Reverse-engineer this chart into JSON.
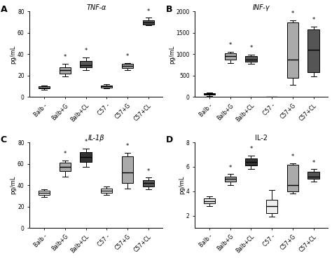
{
  "panels": [
    {
      "label": "A",
      "title": "TNF-α",
      "ylabel": "pg/mL",
      "ylim": [
        0,
        80
      ],
      "yticks": [
        0,
        20,
        40,
        60,
        80
      ],
      "groups": [
        "Balb -",
        "Balb+G",
        "Balb+CL",
        "C57 -",
        "C57+G",
        "C57+CL"
      ],
      "boxes": [
        {
          "med": 9,
          "q1": 8,
          "q3": 10,
          "whislo": 7,
          "whishi": 11,
          "color": "#cccccc",
          "star": false
        },
        {
          "med": 25,
          "q1": 22,
          "q3": 28,
          "whislo": 19,
          "whishi": 31,
          "color": "#aaaaaa",
          "star": true
        },
        {
          "med": 30,
          "q1": 28,
          "q3": 34,
          "whislo": 25,
          "whishi": 37,
          "color": "#555555",
          "star": true
        },
        {
          "med": 10,
          "q1": 9,
          "q3": 11,
          "whislo": 8,
          "whishi": 12,
          "color": "#cccccc",
          "star": false
        },
        {
          "med": 29,
          "q1": 27,
          "q3": 31,
          "whislo": 25,
          "whishi": 32,
          "color": "#aaaaaa",
          "star": true
        },
        {
          "med": 70,
          "q1": 68,
          "q3": 72,
          "whislo": 67,
          "whishi": 74,
          "color": "#555555",
          "star": true
        }
      ]
    },
    {
      "label": "B",
      "title": "INF-γ",
      "ylabel": "pg/mL",
      "ylim": [
        0,
        2000
      ],
      "yticks": [
        0,
        500,
        1000,
        1500,
        2000
      ],
      "groups": [
        "Balb -",
        "Balb+G",
        "Balb+CL",
        "C57 -",
        "C57+G",
        "C57+CL"
      ],
      "boxes": [
        {
          "med": 70,
          "q1": 50,
          "q3": 90,
          "whislo": 30,
          "whishi": 100,
          "color": "#cccccc",
          "star": false
        },
        {
          "med": 950,
          "q1": 870,
          "q3": 1020,
          "whislo": 790,
          "whishi": 1060,
          "color": "#aaaaaa",
          "star": true
        },
        {
          "med": 880,
          "q1": 830,
          "q3": 960,
          "whislo": 780,
          "whishi": 990,
          "color": "#555555",
          "star": true
        },
        {
          "med": 5,
          "q1": 3,
          "q3": 8,
          "whislo": 1,
          "whishi": 10,
          "color": "#cccccc",
          "star": false
        },
        {
          "med": 880,
          "q1": 450,
          "q3": 1750,
          "whislo": 280,
          "whishi": 1800,
          "color": "#aaaaaa",
          "star": true
        },
        {
          "med": 1100,
          "q1": 580,
          "q3": 1580,
          "whislo": 480,
          "whishi": 1640,
          "color": "#555555",
          "star": true
        }
      ]
    },
    {
      "label": "C",
      "title": "IL-1β",
      "ylabel": "pg/mL",
      "ylim": [
        0,
        80
      ],
      "yticks": [
        0,
        20,
        40,
        60,
        80
      ],
      "groups": [
        "Balb -",
        "Balb+G",
        "Balb+CL",
        "C57 -",
        "C57+G",
        "C57+CL"
      ],
      "boxes": [
        {
          "med": 33,
          "q1": 31,
          "q3": 35,
          "whislo": 29,
          "whishi": 36,
          "color": "#eeeeee",
          "star": false
        },
        {
          "med": 57,
          "q1": 53,
          "q3": 61,
          "whislo": 48,
          "whishi": 63,
          "color": "#aaaaaa",
          "star": true
        },
        {
          "med": 66,
          "q1": 62,
          "q3": 71,
          "whislo": 57,
          "whishi": 74,
          "color": "#333333",
          "star": true
        },
        {
          "med": 35,
          "q1": 33,
          "q3": 37,
          "whislo": 31,
          "whishi": 39,
          "color": "#eeeeee",
          "star": false
        },
        {
          "med": 52,
          "q1": 42,
          "q3": 67,
          "whislo": 37,
          "whishi": 70,
          "color": "#aaaaaa",
          "star": true
        },
        {
          "med": 42,
          "q1": 39,
          "q3": 45,
          "whislo": 36,
          "whishi": 47,
          "color": "#555555",
          "star": true
        }
      ]
    },
    {
      "label": "D",
      "title": "IL-2",
      "ylabel": "pg/mL",
      "ylim": [
        1,
        8
      ],
      "yticks": [
        2,
        4,
        6,
        8
      ],
      "groups": [
        "Balb -",
        "Balb+G",
        "Balb+CL",
        "C57 -",
        "C57+G",
        "C57+CL"
      ],
      "boxes": [
        {
          "med": 3.2,
          "q1": 3.0,
          "q3": 3.4,
          "whislo": 2.8,
          "whishi": 3.6,
          "color": "#eeeeee",
          "star": false
        },
        {
          "med": 5.0,
          "q1": 4.8,
          "q3": 5.2,
          "whislo": 4.5,
          "whishi": 5.4,
          "color": "#aaaaaa",
          "star": true
        },
        {
          "med": 6.4,
          "q1": 6.1,
          "q3": 6.7,
          "whislo": 5.8,
          "whishi": 6.9,
          "color": "#333333",
          "star": true
        },
        {
          "med": 2.8,
          "q1": 2.2,
          "q3": 3.3,
          "whislo": 1.9,
          "whishi": 4.1,
          "color": "#eeeeee",
          "star": false
        },
        {
          "med": 4.5,
          "q1": 4.0,
          "q3": 6.2,
          "whislo": 3.8,
          "whishi": 6.3,
          "color": "#aaaaaa",
          "star": true
        },
        {
          "med": 5.2,
          "q1": 5.0,
          "q3": 5.6,
          "whislo": 4.8,
          "whishi": 5.8,
          "color": "#555555",
          "star": true
        }
      ]
    }
  ],
  "background_color": "#ffffff",
  "fontsize_title": 7,
  "fontsize_label": 6,
  "fontsize_tick": 5.5
}
